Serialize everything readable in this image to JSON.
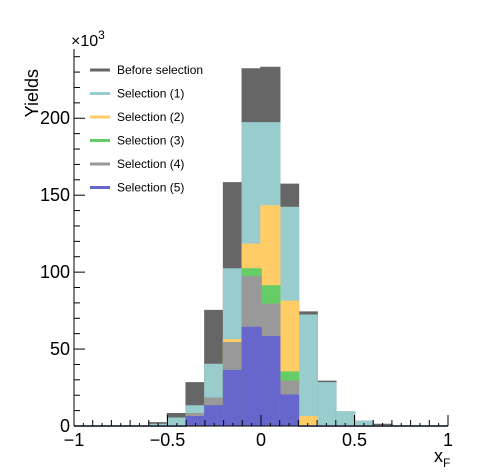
{
  "chart_data": {
    "type": "histogram",
    "xlabel": "x",
    "xlabel_sub": "F",
    "ylabel": "Yields",
    "y_multiplier_base": "×10",
    "y_multiplier_exp": "3",
    "xlim": [
      -1,
      1
    ],
    "ylim": [
      0,
      245
    ],
    "x_ticks": [
      -1,
      -0.5,
      0,
      0.5,
      1
    ],
    "x_tick_labels": [
      "−1",
      "−0.5",
      "0",
      "0.5",
      "1"
    ],
    "y_ticks": [
      0,
      50,
      100,
      150,
      200
    ],
    "y_tick_labels": [
      "0",
      "50",
      "100",
      "150",
      "200"
    ],
    "bin_edges": [
      -1.0,
      -0.9,
      -0.8,
      -0.7,
      -0.6,
      -0.5,
      -0.4,
      -0.3,
      -0.2,
      -0.1,
      0.0,
      0.1,
      0.2,
      0.3,
      0.4,
      0.5,
      0.6,
      0.7,
      0.8,
      0.9,
      1.0
    ],
    "legend_position": "top-left",
    "series": [
      {
        "name": "Before selection",
        "color": "#666666",
        "values": [
          0,
          0,
          0,
          0,
          2,
          8,
          28,
          75,
          158,
          232,
          233,
          157,
          74,
          29,
          9,
          3,
          1,
          0,
          0,
          0
        ]
      },
      {
        "name": "Selection (1)",
        "color": "#99cccc",
        "values": [
          0,
          0,
          0,
          0,
          1,
          5,
          13,
          40,
          102,
          197,
          197,
          142,
          72,
          28,
          9,
          3,
          0,
          0,
          0,
          0
        ]
      },
      {
        "name": "Selection (2)",
        "color": "#ffcc66",
        "values": [
          0,
          0,
          0,
          0,
          0,
          0,
          0,
          3,
          56,
          118,
          143,
          81,
          6,
          0,
          0,
          0,
          0,
          0,
          0,
          0
        ]
      },
      {
        "name": "Selection (3)",
        "color": "#66cc66",
        "values": [
          0,
          0,
          0,
          0,
          0,
          0,
          8,
          18,
          54,
          102,
          91,
          35,
          0,
          0,
          0,
          0,
          0,
          0,
          0,
          0
        ]
      },
      {
        "name": "Selection (4)",
        "color": "#999999",
        "values": [
          0,
          0,
          0,
          0,
          0,
          0,
          8,
          18,
          54,
          97,
          79,
          29,
          0,
          0,
          0,
          0,
          0,
          0,
          0,
          0
        ]
      },
      {
        "name": "Selection (5)",
        "color": "#6666cc",
        "values": [
          0,
          0,
          0,
          0,
          0,
          0,
          6,
          13,
          36,
          64,
          58,
          20,
          0,
          0,
          0,
          0,
          0,
          0,
          0,
          0
        ]
      }
    ]
  }
}
